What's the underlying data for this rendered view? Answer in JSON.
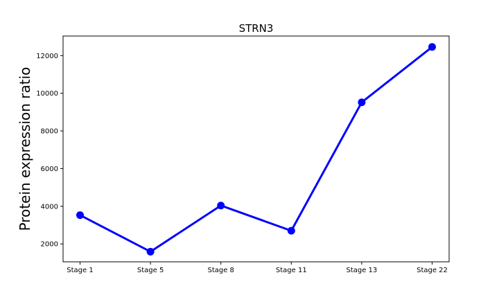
{
  "chart_data": {
    "type": "line",
    "title": "STRN3",
    "xlabel": "",
    "ylabel": "Protein expression ratio",
    "categories": [
      "Stage 1",
      "Stage 5",
      "Stage 8",
      "Stage 11",
      "Stage 13",
      "Stage 22"
    ],
    "series": [
      {
        "name": "STRN3",
        "values": [
          3530,
          1590,
          4040,
          2700,
          9520,
          12460
        ],
        "color": "#0000ff"
      }
    ],
    "ylim": [
      1050,
      13040
    ],
    "yticks": [
      2000,
      4000,
      6000,
      8000,
      10000,
      12000
    ],
    "grid": false,
    "legend": "none"
  }
}
